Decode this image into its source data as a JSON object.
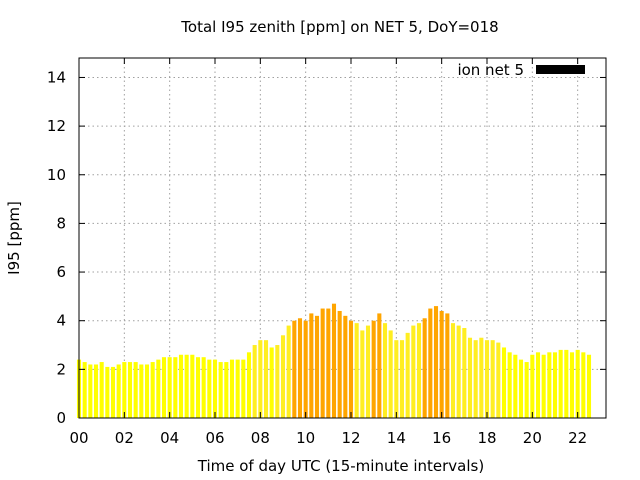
{
  "chart_data": {
    "type": "bar",
    "title": "Total I95 zenith [ppm] on NET 5, DoY=018",
    "xlabel": "Time of day UTC (15-minute intervals)",
    "ylabel": "I95 [ppm]",
    "legend": {
      "label": "ion net 5",
      "color": "#000000",
      "placement": "top-right"
    },
    "xlim": [
      0,
      23.25
    ],
    "ylim": [
      0,
      14.8
    ],
    "x_ticks": [
      0,
      2,
      4,
      6,
      8,
      10,
      12,
      14,
      16,
      18,
      20,
      22
    ],
    "x_tick_labels": [
      "00",
      "02",
      "04",
      "06",
      "08",
      "10",
      "12",
      "14",
      "16",
      "18",
      "20",
      "22"
    ],
    "y_ticks": [
      0,
      2,
      4,
      6,
      8,
      10,
      12,
      14
    ],
    "y_tick_labels": [
      "0",
      "2",
      "4",
      "6",
      "8",
      "10",
      "12",
      "14"
    ],
    "grid": true,
    "colors": {
      "low": "#ffff00",
      "mid": "#ffee22",
      "high": "#ffa500",
      "legend_bar": "#000000"
    },
    "series": [
      {
        "interval_hours": 0.25,
        "start_hour": 0,
        "values": [
          2.4,
          2.3,
          2.2,
          2.2,
          2.3,
          2.1,
          2.1,
          2.2,
          2.3,
          2.3,
          2.3,
          2.2,
          2.2,
          2.3,
          2.4,
          2.5,
          2.5,
          2.5,
          2.6,
          2.6,
          2.6,
          2.5,
          2.5,
          2.4,
          2.4,
          2.3,
          2.3,
          2.4,
          2.4,
          2.4,
          2.7,
          3.0,
          3.2,
          3.2,
          2.9,
          3.0,
          3.4,
          3.8,
          4.0,
          4.1,
          4.0,
          4.3,
          4.2,
          4.5,
          4.5,
          4.7,
          4.4,
          4.2,
          4.0,
          3.9,
          3.6,
          3.8,
          4.0,
          4.3,
          3.9,
          3.6,
          3.2,
          3.2,
          3.5,
          3.8,
          3.9,
          4.1,
          4.5,
          4.6,
          4.4,
          4.3,
          3.9,
          3.8,
          3.7,
          3.3,
          3.2,
          3.3,
          3.2,
          3.2,
          3.1,
          2.9,
          2.7,
          2.6,
          2.4,
          2.3,
          2.6,
          2.7,
          2.6,
          2.7,
          2.7,
          2.8,
          2.8,
          2.7,
          2.8,
          2.7,
          2.6
        ]
      }
    ]
  }
}
